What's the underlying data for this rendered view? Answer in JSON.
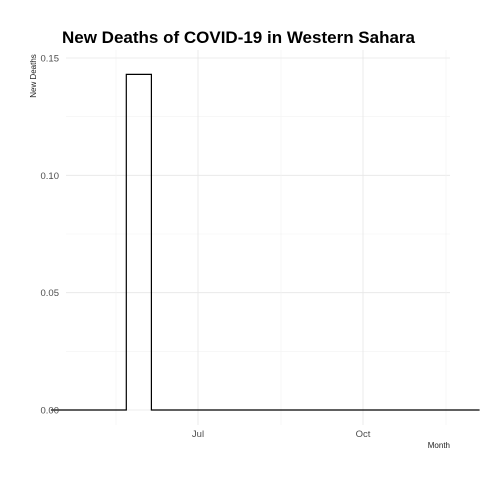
{
  "chart_data": {
    "type": "line",
    "title": "New Deaths of COVID-19 in Western Sahara",
    "xlabel": "Month",
    "ylabel": "New Deaths",
    "x_ticks": [
      "Jul",
      "Oct"
    ],
    "y_ticks": [
      "0.00",
      "0.05",
      "0.10",
      "0.15"
    ],
    "ylim": [
      0,
      0.15
    ],
    "grid": true,
    "series": [
      {
        "name": "New Deaths",
        "x": [
          "2020-04-10",
          "2020-05-22",
          "2020-05-22",
          "2020-06-05",
          "2020-06-05",
          "2020-12-05"
        ],
        "values": [
          0,
          0,
          0.143,
          0.143,
          0,
          0
        ]
      }
    ]
  }
}
